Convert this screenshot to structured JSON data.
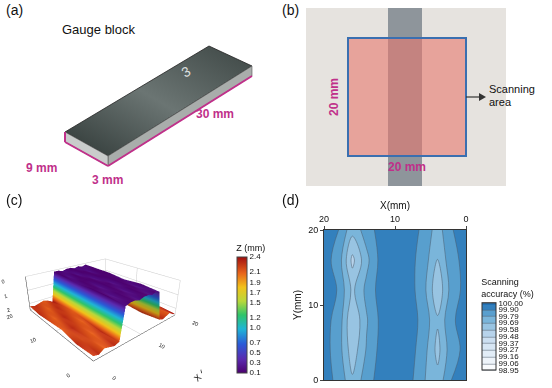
{
  "panels": {
    "a": {
      "label": "(a)",
      "title": "Gauge block",
      "marking": "3",
      "length_label": "30 mm",
      "width_label": "9 mm",
      "thickness_label": "3 mm"
    },
    "b": {
      "label": "(b)",
      "height_label": "20 mm",
      "width_label": "20 mm",
      "annotation": "Scanning area"
    }
  },
  "chart_data": [
    {
      "panel": "(c)",
      "type": "surface",
      "x_label": "X (mm)",
      "y_label": "Y (mm)",
      "z_label": "Z (mm)",
      "x": [
        0,
        1,
        2,
        3,
        4,
        5,
        6,
        7,
        8,
        9,
        10,
        11,
        12,
        13,
        14,
        15,
        16,
        17,
        18,
        19,
        20
      ],
      "y": [
        0,
        4,
        8,
        12,
        16,
        20
      ],
      "z": [
        [
          2.2,
          2.3,
          2.1,
          2.2,
          2.3,
          2.2,
          0.2,
          0.1,
          0.1,
          0.2,
          0.1,
          0.1,
          0.2,
          0.1,
          0.2,
          2.2,
          2.3,
          2.2,
          2.1,
          2.3,
          2.4
        ],
        [
          2.3,
          2.2,
          2.2,
          2.1,
          2.2,
          2.3,
          0.1,
          0.2,
          0.1,
          0.1,
          0.2,
          0.1,
          0.1,
          0.2,
          0.1,
          2.3,
          2.2,
          2.1,
          2.2,
          2.2,
          2.3
        ],
        [
          2.1,
          2.2,
          2.3,
          2.2,
          2.1,
          2.2,
          0.1,
          0.1,
          0.2,
          0.1,
          0.1,
          0.2,
          0.1,
          0.1,
          0.2,
          2.2,
          2.1,
          2.3,
          2.2,
          2.1,
          2.2
        ],
        [
          2.2,
          2.1,
          2.2,
          2.3,
          2.2,
          2.1,
          0.2,
          0.1,
          0.1,
          0.1,
          0.2,
          0.1,
          0.1,
          0.1,
          0.1,
          2.1,
          2.2,
          2.2,
          2.3,
          2.2,
          2.1
        ],
        [
          2.3,
          2.2,
          2.1,
          2.2,
          2.3,
          2.2,
          0.1,
          0.2,
          0.1,
          0.2,
          0.1,
          0.1,
          0.2,
          0.1,
          0.1,
          2.2,
          2.3,
          2.2,
          2.1,
          2.2,
          2.2
        ],
        [
          2.2,
          2.3,
          2.2,
          2.1,
          2.2,
          2.4,
          0.1,
          0.1,
          0.2,
          0.1,
          0.1,
          0.2,
          0.1,
          0.2,
          0.1,
          2.3,
          2.2,
          2.1,
          2.2,
          2.3,
          2.4
        ]
      ],
      "xlim": [
        0,
        20
      ],
      "ylim": [
        0,
        20
      ],
      "zlim": [
        2.5,
        0
      ],
      "xticks": [
        0,
        10,
        20
      ],
      "yticks": [
        0,
        10,
        20
      ],
      "zticks": [
        0,
        1,
        2
      ],
      "colorbar": {
        "title": "Z (mm)",
        "range": [
          0.1,
          2.4
        ],
        "ticks": [
          0.1,
          0.3,
          0.5,
          0.7,
          {
            "value": 1.0,
            "label": "1.0"
          },
          1.2,
          1.5,
          1.7,
          1.9,
          2.1,
          2.4
        ]
      }
    },
    {
      "panel": "(d)",
      "type": "contour",
      "x_label": "X(mm)",
      "y_label": "Y(mm)",
      "x": [
        0,
        2,
        4,
        6,
        8,
        10,
        12,
        14,
        16,
        18,
        20
      ],
      "y": [
        0,
        4,
        8,
        12,
        16,
        20
      ],
      "z": [
        [
          99.93,
          99.9,
          99.72,
          99.8,
          99.93,
          99.95,
          99.94,
          99.85,
          99.7,
          99.88,
          99.92
        ],
        [
          99.92,
          99.86,
          99.65,
          99.84,
          99.94,
          99.96,
          99.93,
          99.8,
          99.62,
          99.85,
          99.93
        ],
        [
          99.94,
          99.88,
          99.7,
          99.86,
          99.95,
          99.95,
          99.92,
          99.78,
          99.58,
          99.87,
          99.92
        ],
        [
          99.93,
          99.84,
          99.6,
          99.83,
          99.94,
          99.96,
          99.94,
          99.82,
          99.66,
          99.89,
          99.94
        ],
        [
          99.92,
          99.87,
          99.68,
          99.85,
          99.93,
          99.95,
          99.93,
          99.76,
          99.55,
          99.86,
          99.93
        ],
        [
          99.94,
          99.89,
          99.74,
          99.87,
          99.95,
          99.96,
          99.94,
          99.84,
          99.72,
          99.9,
          99.92
        ]
      ],
      "xlim": [
        20,
        0
      ],
      "ylim": [
        0,
        20
      ],
      "xticks": [
        20,
        10,
        0
      ],
      "yticks": [
        0,
        10,
        20
      ],
      "colorbar": {
        "title": "Scanning accuracy (%)",
        "range": [
          98.95,
          100
        ],
        "ticks": [
          98.95,
          99.06,
          99.16,
          99.27,
          99.37,
          99.48,
          99.58,
          99.69,
          99.79,
          {
            "value": 99.9,
            "label": "99.90"
          },
          {
            "value": 100,
            "label": "100.00"
          }
        ]
      }
    }
  ]
}
